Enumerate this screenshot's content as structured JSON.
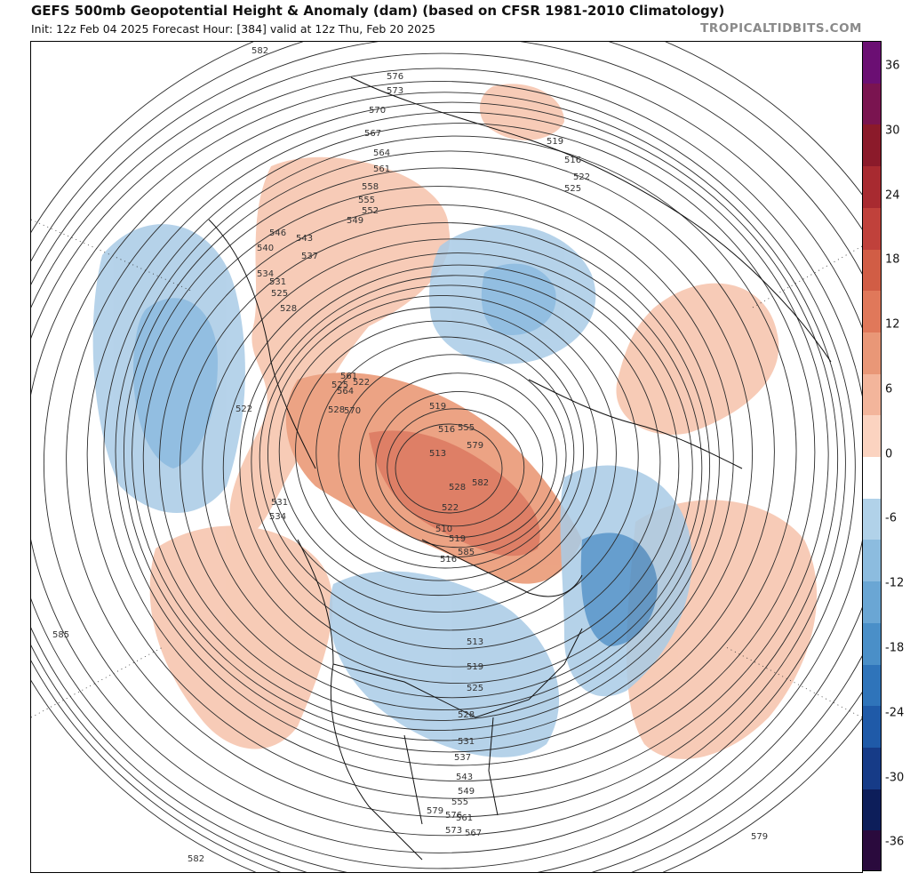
{
  "header": {
    "title": "GEFS 500mb Geopotential Height & Anomaly (dam) (based on CFSR 1981-2010 Climatology)",
    "subtitle": "Init: 12z Feb 04 2025   Forecast Hour: [384]   valid at 12z Thu, Feb 20 2025",
    "brand": "TROPICALTIDBITS.COM"
  },
  "colorbar": {
    "labels": [
      "36",
      "30",
      "24",
      "18",
      "12",
      "6",
      "0",
      "-6",
      "-12",
      "-18",
      "-24",
      "-30",
      "-36"
    ],
    "colors": [
      "#2a0a3d",
      "#0d1e5a",
      "#163b87",
      "#1f5aa8",
      "#2f74ba",
      "#4a8fc8",
      "#6aa6d4",
      "#8cbcdf",
      "#b1d2e9",
      "#ffffff",
      "#fbd3c0",
      "#f3b59b",
      "#e99777",
      "#e0785a",
      "#d15d45",
      "#c0413b",
      "#a82a30",
      "#8b1a2a",
      "#7a1450",
      "#6b0f73"
    ]
  },
  "contour_labels": [
    "576",
    "573",
    "570",
    "567",
    "564",
    "561",
    "558",
    "555",
    "552",
    "549",
    "546",
    "543",
    "540",
    "537",
    "534",
    "531",
    "528",
    "525",
    "522",
    "519",
    "516",
    "513",
    "510",
    "585",
    "582",
    "579",
    "555",
    "561",
    "564",
    "570",
    "519",
    "516",
    "522",
    "525",
    "528",
    "522",
    "519",
    "516",
    "513",
    "519",
    "525",
    "528",
    "531",
    "537",
    "543",
    "549",
    "555",
    "561",
    "567",
    "573",
    "576",
    "579",
    "582",
    "585",
    "582",
    "531",
    "534",
    "579",
    "525",
    "528",
    "522"
  ],
  "map": {
    "anomaly_positive_color": "#f5b9a0",
    "anomaly_positive_strong": "#e98c6e",
    "anomaly_negative_color": "#9cc6e4",
    "anomaly_negative_strong": "#4c8ec6"
  }
}
